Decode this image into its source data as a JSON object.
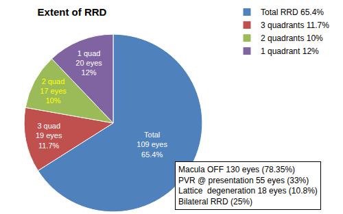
{
  "chart_data": {
    "type": "pie",
    "title": "Extent of RRD",
    "categories": [
      "Total RRD 65.4%",
      "3 quadrants 11.7%",
      "2 quadrants 10%",
      "1 quadrant 12%"
    ],
    "values": [
      65.4,
      11.7,
      10,
      12
    ],
    "colors": [
      "#4f81bd",
      "#c0504d",
      "#9bbb59",
      "#8064a2"
    ],
    "slice_labels": [
      [
        "Total",
        "109 eyes",
        "65.4%"
      ],
      [
        "3 quad",
        "19 eyes",
        "11.7%"
      ],
      [
        "2 quad",
        "17 eyes",
        "10%"
      ],
      [
        "1 quad",
        "20 eyes",
        "12%"
      ]
    ],
    "data_labels": true,
    "legend": "top right",
    "annotations": [
      "Macula OFF 130 eyes (78.35%)",
      "PVR @ presentation 55 eyes (33%)",
      "Lattice  degeneration 18 eyes (10.8%)",
      "Bilateral RRD (25%)"
    ]
  }
}
